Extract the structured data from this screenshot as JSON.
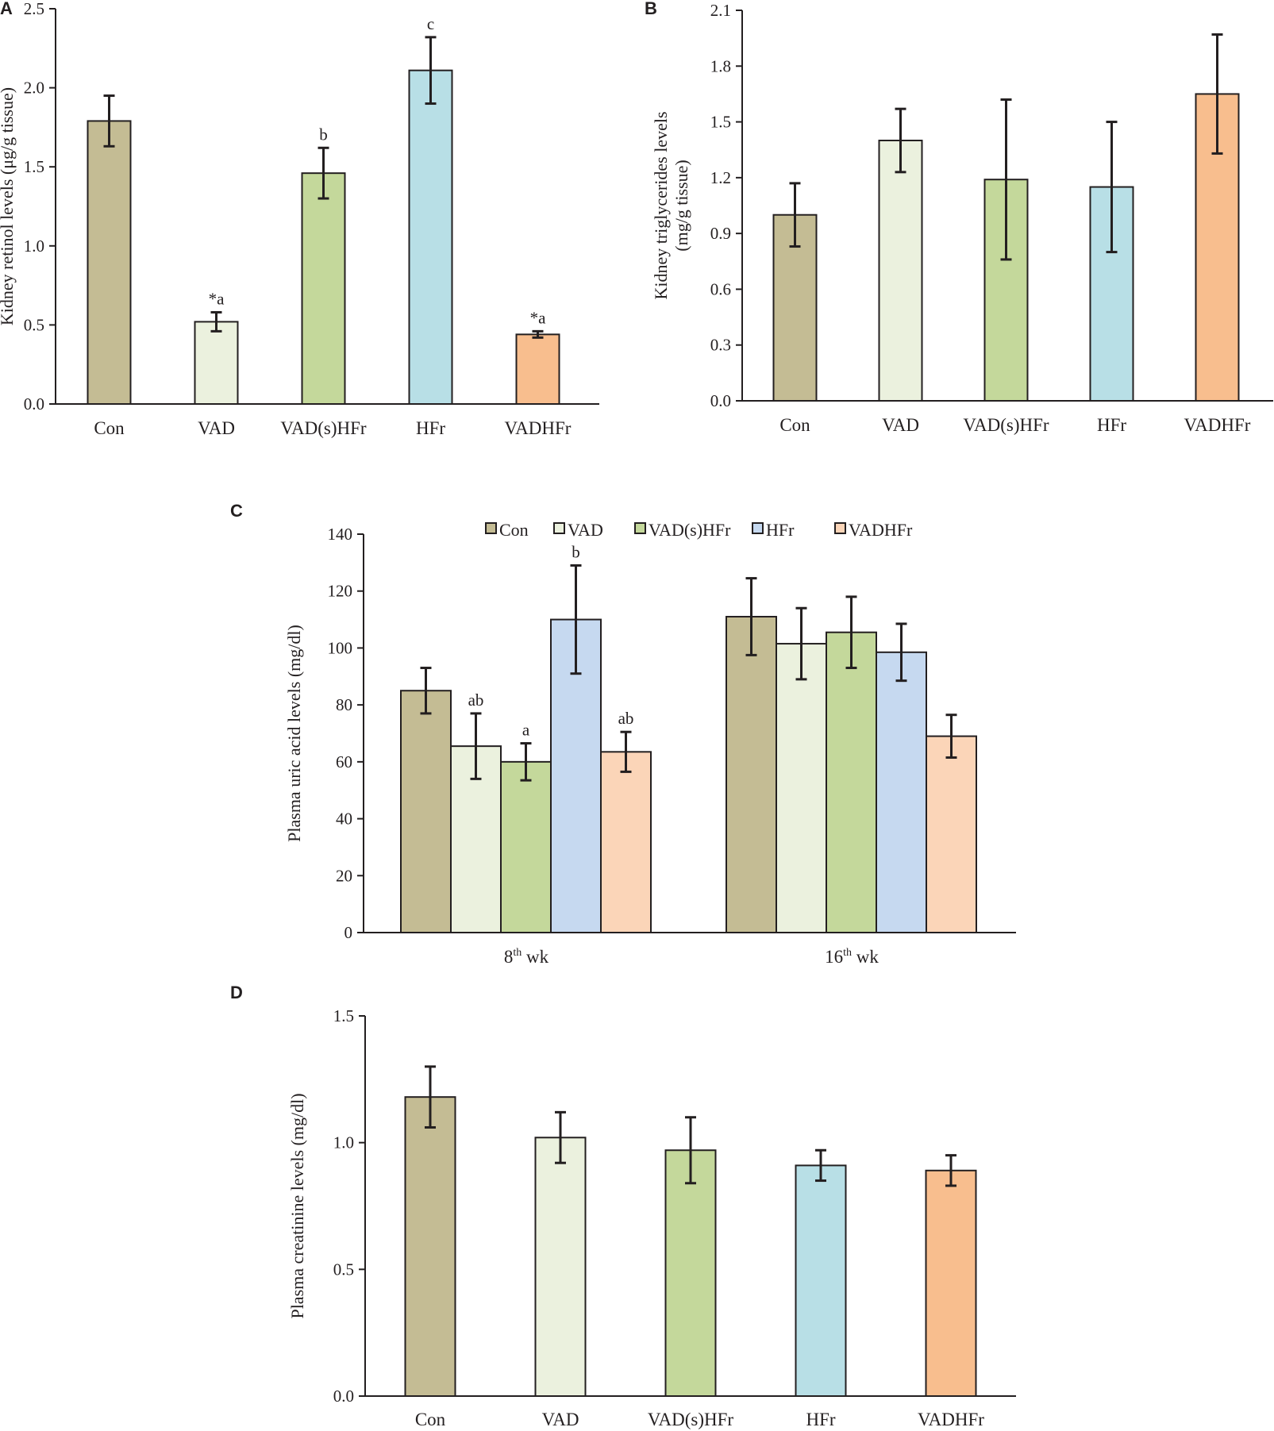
{
  "chart_data": [
    {
      "panel": "A",
      "type": "bar",
      "title": "",
      "ylabel": "Kidney retinol levels (μg/g tissue)",
      "ylim": [
        0,
        2.5
      ],
      "yticks": [
        "0.0",
        "0.5",
        "1.0",
        "1.5",
        "2.0",
        "2.5"
      ],
      "categories": [
        "Con",
        "VAD",
        "VAD(s)HFr",
        "HFr",
        "VADHFr"
      ],
      "values": [
        1.79,
        0.52,
        1.46,
        2.11,
        0.44
      ],
      "errors": [
        0.16,
        0.06,
        0.16,
        0.21,
        0.02
      ],
      "annotations": [
        "",
        "*a",
        "b",
        "c",
        "*a"
      ],
      "colors": [
        "#c4bc94",
        "#ebf1de",
        "#c4d89b",
        "#b8dfe6",
        "#f8be8e"
      ]
    },
    {
      "panel": "B",
      "type": "bar",
      "title": "",
      "ylabel_lines": [
        "Kidney triglycerides  levels",
        "(mg/g tissue)"
      ],
      "ylim": [
        0,
        2.1
      ],
      "yticks": [
        "0.0",
        "0.3",
        "0.6",
        "0.9",
        "1.2",
        "1.5",
        "1.8",
        "2.1"
      ],
      "categories": [
        "Con",
        "VAD",
        "VAD(s)HFr",
        "HFr",
        "VADHFr"
      ],
      "values": [
        1.0,
        1.4,
        1.19,
        1.15,
        1.65
      ],
      "errors": [
        0.17,
        0.17,
        0.43,
        0.35,
        0.32
      ],
      "colors": [
        "#c4bc94",
        "#ebf1de",
        "#c4d89b",
        "#b8dfe6",
        "#f8be8e"
      ]
    },
    {
      "panel": "C",
      "type": "bar",
      "title": "",
      "ylabel": "Plasma uric acid levels (mg/dl)",
      "ylim": [
        0,
        140
      ],
      "yticks": [
        "0",
        "20",
        "40",
        "60",
        "80",
        "100",
        "120",
        "140"
      ],
      "groups": [
        {
          "num": "8",
          "sup": "th",
          "suffix": " wk"
        },
        {
          "num": "16",
          "sup": "th",
          "suffix": " wk"
        }
      ],
      "legend": [
        "Con",
        "VAD",
        "VAD(s)HFr",
        "HFr",
        "VADHFr"
      ],
      "series": [
        {
          "name": "Con",
          "values": [
            85,
            111
          ],
          "errors": [
            8,
            13.5
          ],
          "color": "#c4bc94"
        },
        {
          "name": "VAD",
          "values": [
            65.5,
            101.5
          ],
          "errors": [
            11.5,
            12.5
          ],
          "color": "#ebf1de"
        },
        {
          "name": "VAD(s)HFr",
          "values": [
            60,
            105.5
          ],
          "errors": [
            6.5,
            12.5
          ],
          "color": "#c4d89b"
        },
        {
          "name": "HFr",
          "values": [
            110,
            98.5
          ],
          "errors": [
            19,
            10
          ],
          "color": "#c6d9f0"
        },
        {
          "name": "VADHFr",
          "values": [
            63.5,
            69
          ],
          "errors": [
            7,
            7.5
          ],
          "color": "#fbd5b8"
        }
      ],
      "annotations": [
        [
          "",
          "ab",
          "a",
          "b",
          "ab"
        ],
        [
          "",
          "",
          "",
          "",
          ""
        ]
      ]
    },
    {
      "panel": "D",
      "type": "bar",
      "title": "",
      "ylabel": "Plasma creatinine levels (mg/dl)",
      "ylim": [
        0,
        1.5
      ],
      "yticks": [
        "0.0",
        "0.5",
        "1.0",
        "1.5"
      ],
      "categories": [
        "Con",
        "VAD",
        "VAD(s)HFr",
        "HFr",
        "VADHFr"
      ],
      "values": [
        1.18,
        1.02,
        0.97,
        0.91,
        0.89
      ],
      "errors": [
        0.12,
        0.1,
        0.13,
        0.06,
        0.06
      ],
      "colors": [
        "#c4bc94",
        "#ebf1de",
        "#c4d89b",
        "#b8dfe6",
        "#f8be8e"
      ]
    }
  ]
}
